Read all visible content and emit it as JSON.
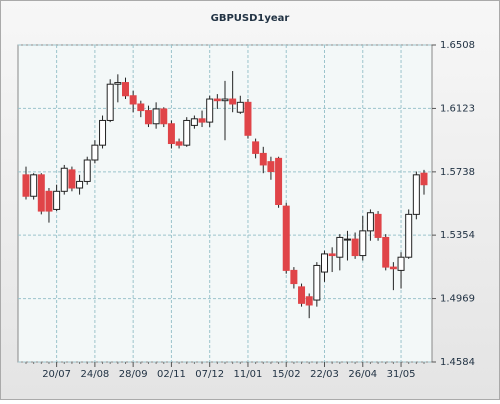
{
  "chart_data": {
    "type": "candlestick",
    "title": "GBPUSD1year",
    "categories": [
      null,
      null,
      null,
      null,
      "20/07",
      null,
      null,
      null,
      null,
      "24/08",
      null,
      null,
      null,
      null,
      "28/09",
      null,
      null,
      null,
      null,
      "02/11",
      null,
      null,
      null,
      null,
      "07/12",
      null,
      null,
      null,
      null,
      "11/01",
      null,
      null,
      null,
      null,
      "15/02",
      null,
      null,
      null,
      null,
      "22/03",
      null,
      null,
      null,
      null,
      "26/04",
      null,
      null,
      null,
      null,
      "31/05",
      null,
      null,
      null
    ],
    "open": [
      1.572,
      1.559,
      1.572,
      1.562,
      1.551,
      1.562,
      1.575,
      1.564,
      1.568,
      1.581,
      1.59,
      1.605,
      1.627,
      1.628,
      1.62,
      1.615,
      1.611,
      1.603,
      1.612,
      1.603,
      1.592,
      1.59,
      1.602,
      1.606,
      1.604,
      1.618,
      1.617,
      1.618,
      1.61,
      1.616,
      1.592,
      1.585,
      1.58,
      1.582,
      1.553,
      1.514,
      1.504,
      1.498,
      1.496,
      1.513,
      1.524,
      1.522,
      1.533,
      1.533,
      1.523,
      1.538,
      1.548,
      1.534,
      1.516,
      1.514,
      1.522,
      1.548,
      1.573
    ],
    "high": [
      1.577,
      1.573,
      1.573,
      1.564,
      1.566,
      1.578,
      1.577,
      1.572,
      1.583,
      1.593,
      1.608,
      1.63,
      1.633,
      1.631,
      1.623,
      1.617,
      1.614,
      1.616,
      1.613,
      1.605,
      1.594,
      1.607,
      1.608,
      1.611,
      1.62,
      1.621,
      1.629,
      1.635,
      1.62,
      1.618,
      1.594,
      1.589,
      1.583,
      1.583,
      1.555,
      1.516,
      1.506,
      1.5,
      1.519,
      1.526,
      1.528,
      1.536,
      1.538,
      1.537,
      1.547,
      1.551,
      1.55,
      1.536,
      1.519,
      1.525,
      1.551,
      1.574,
      1.575
    ],
    "low": [
      1.557,
      1.557,
      1.548,
      1.543,
      1.55,
      1.56,
      1.562,
      1.56,
      1.566,
      1.579,
      1.588,
      1.604,
      1.616,
      1.618,
      1.61,
      1.607,
      1.601,
      1.6,
      1.601,
      1.588,
      1.588,
      1.589,
      1.6,
      1.601,
      1.601,
      1.612,
      1.593,
      1.61,
      1.609,
      1.594,
      1.582,
      1.573,
      1.569,
      1.552,
      1.512,
      1.503,
      1.492,
      1.485,
      1.492,
      1.507,
      1.513,
      1.514,
      1.52,
      1.521,
      1.52,
      1.532,
      1.532,
      1.514,
      1.502,
      1.503,
      1.521,
      1.545,
      1.56
    ],
    "close": [
      1.559,
      1.572,
      1.55,
      1.55,
      1.562,
      1.576,
      1.564,
      1.568,
      1.581,
      1.59,
      1.605,
      1.627,
      1.628,
      1.62,
      1.615,
      1.611,
      1.603,
      1.612,
      1.603,
      1.591,
      1.59,
      1.605,
      1.606,
      1.604,
      1.618,
      1.617,
      1.618,
      1.615,
      1.616,
      1.596,
      1.585,
      1.578,
      1.574,
      1.554,
      1.514,
      1.506,
      1.494,
      1.493,
      1.517,
      1.524,
      1.523,
      1.534,
      1.533,
      1.523,
      1.538,
      1.549,
      1.534,
      1.516,
      1.515,
      1.522,
      1.548,
      1.572,
      1.566
    ],
    "up_color": "#ffffff",
    "down_color": "#e04448",
    "ylim": [
      1.4584,
      1.6508
    ],
    "yticks": [
      1.4584,
      1.4969,
      1.5354,
      1.5738,
      1.6123,
      1.6508
    ],
    "grid": true
  }
}
